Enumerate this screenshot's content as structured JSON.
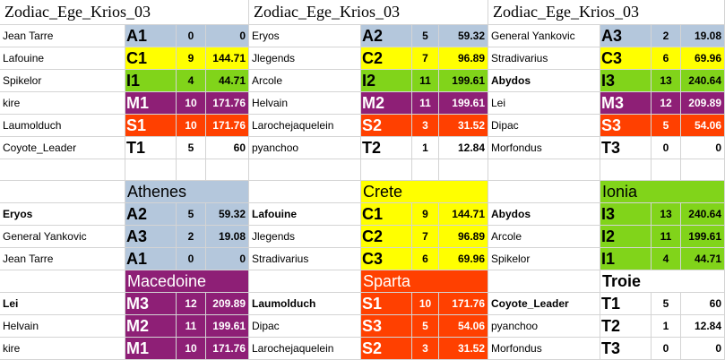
{
  "top": {
    "groups": [
      {
        "title": "Zodiac_Ege_Krios_03",
        "rows": [
          [
            "Jean Tarre",
            "A1",
            0,
            0
          ],
          [
            "Lafouine",
            "C1",
            9,
            144.71
          ],
          [
            "Spikelor",
            "I1",
            4,
            44.71
          ],
          [
            "kire",
            "M1",
            10,
            171.76
          ],
          [
            "Laumolduch",
            "S1",
            10,
            171.76
          ],
          [
            "Coyote_Leader",
            "T1",
            5,
            60
          ]
        ]
      },
      {
        "title": "Zodiac_Ege_Krios_03",
        "rows": [
          [
            "Eryos",
            "A2",
            5,
            59.32
          ],
          [
            "Jlegends",
            "C2",
            7,
            96.89
          ],
          [
            "Arcole",
            "I2",
            11,
            199.61
          ],
          [
            "Helvain",
            "M2",
            11,
            199.61
          ],
          [
            "Larochejaquelein",
            "S2",
            3,
            31.52
          ],
          [
            "pyanchoo",
            "T2",
            1,
            12.84
          ]
        ]
      },
      {
        "title": "Zodiac_Ege_Krios_03",
        "rows": [
          [
            "General Yankovic",
            "A3",
            2,
            19.08
          ],
          [
            "Stradivarius",
            "C3",
            6,
            69.96
          ],
          [
            "Abydos",
            "I3",
            13,
            240.64
          ],
          [
            "Lei",
            "M3",
            12,
            209.89
          ],
          [
            "Dipac",
            "S3",
            5,
            54.06
          ],
          [
            "Morfondus",
            "T3",
            0,
            0
          ]
        ]
      }
    ]
  },
  "teams": [
    {
      "title": "Athenes",
      "rows": [
        [
          "Eryos",
          "A2",
          5,
          59.32
        ],
        [
          "General Yankovic",
          "A3",
          2,
          19.08
        ],
        [
          "Jean Tarre",
          "A1",
          0,
          0
        ]
      ]
    },
    {
      "title": "Crete",
      "rows": [
        [
          "Lafouine",
          "C1",
          9,
          144.71
        ],
        [
          "Jlegends",
          "C2",
          7,
          96.89
        ],
        [
          "Stradivarius",
          "C3",
          6,
          69.96
        ]
      ]
    },
    {
      "title": "Ionia",
      "rows": [
        [
          "Abydos",
          "I3",
          13,
          240.64
        ],
        [
          "Arcole",
          "I2",
          11,
          199.61
        ],
        [
          "Spikelor",
          "I1",
          4,
          44.71
        ]
      ]
    },
    {
      "title": "Macedoine",
      "rows": [
        [
          "Lei",
          "M3",
          12,
          209.89
        ],
        [
          "Helvain",
          "M2",
          11,
          199.61
        ],
        [
          "kire",
          "M1",
          10,
          171.76
        ]
      ]
    },
    {
      "title": "Sparta",
      "rows": [
        [
          "Laumolduch",
          "S1",
          10,
          171.76
        ],
        [
          "Dipac",
          "S3",
          5,
          54.06
        ],
        [
          "Larochejaquelein",
          "S2",
          3,
          31.52
        ]
      ]
    },
    {
      "title": "Troie",
      "rows": [
        [
          "Coyote_Leader",
          "T1",
          5,
          60
        ],
        [
          "pyanchoo",
          "T2",
          1,
          12.84
        ],
        [
          "Morfondus",
          "T3",
          0,
          0
        ]
      ]
    }
  ]
}
